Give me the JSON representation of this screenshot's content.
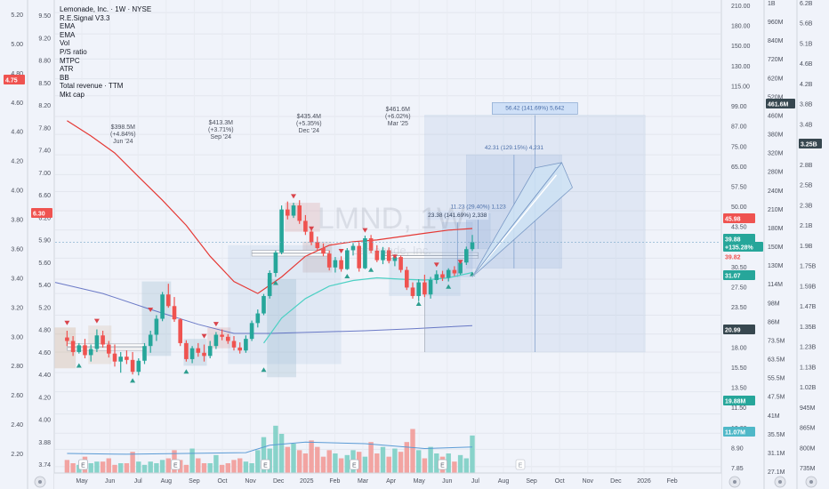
{
  "title": "Lemonade, Inc. · 1W · NYSE",
  "indicators": [
    "R.E.Signal V3.3",
    "EMA",
    "EMA",
    "Vol",
    "P/S ratio",
    "MTPC",
    "ATR",
    "BB",
    "Total revenue · TTM",
    "Mkt cap"
  ],
  "watermark": "LMND, 1W",
  "watermark_sub": "Lemonade, Inc.",
  "colors": {
    "up": "#26a69a",
    "down": "#ef5350",
    "ema_fast": "#e53935",
    "ema_slow": "#4dd0c4",
    "ema_long": "#3f51b5",
    "projection": "#6c8ebf"
  },
  "left_axis_1": {
    "ticks": [
      "5.20",
      "5.00",
      "4.80",
      "4.60",
      "4.40",
      "4.20",
      "4.00",
      "3.80",
      "3.60",
      "3.40",
      "3.20",
      "3.00",
      "2.80",
      "2.60",
      "2.40",
      "2.20"
    ],
    "badge": "4.75"
  },
  "left_axis_2": {
    "ticks": [
      "9.50",
      "9.20",
      "8.80",
      "8.50",
      "8.20",
      "7.80",
      "7.40",
      "7.00",
      "6.60",
      "6.20",
      "5.90",
      "5.60",
      "5.40",
      "5.20",
      "4.80",
      "4.60",
      "4.40",
      "4.20",
      "4.00",
      "3.88",
      "3.74"
    ],
    "badge": "6.30"
  },
  "right_axis_1": {
    "ticks": [
      "210.00",
      "180.00",
      "150.00",
      "130.00",
      "115.00",
      "99.00",
      "87.00",
      "75.00",
      "65.00",
      "57.50",
      "50.00",
      "43.50",
      "35.50",
      "30.50",
      "27.50",
      "23.50",
      "20.50",
      "18.00",
      "15.50",
      "13.50",
      "11.50",
      "10.00",
      "8.90",
      "7.85"
    ],
    "badges": [
      {
        "text": "45.98",
        "color": "#ef5350"
      },
      {
        "text": "39.88",
        "color": "#26a69a"
      },
      {
        "text": "+135.28%",
        "color": "#26a69a"
      },
      {
        "text": "39.82",
        "color": "#ef5350"
      },
      {
        "text": "31.07",
        "color": "#26a69a"
      },
      {
        "text": "20.99",
        "color": "#37474f"
      },
      {
        "text": "19.88M",
        "color": "#26a69a"
      },
      {
        "text": "11.07M",
        "color": "#4fb8c8"
      }
    ]
  },
  "right_axis_2": {
    "ticks": [
      "1B",
      "960M",
      "840M",
      "720M",
      "620M",
      "520M",
      "460M",
      "380M",
      "320M",
      "280M",
      "240M",
      "210M",
      "180M",
      "150M",
      "130M",
      "114M",
      "98M",
      "86M",
      "73.5M",
      "63.5M",
      "55.5M",
      "47.5M",
      "41M",
      "35.5M",
      "31.1M",
      "27.1M"
    ],
    "badge": "461.6M"
  },
  "right_axis_3": {
    "ticks": [
      "6.2B",
      "5.6B",
      "5.1B",
      "4.6B",
      "4.2B",
      "3.8B",
      "3.4B",
      "3.1B",
      "2.8B",
      "2.5B",
      "2.3B",
      "2.1B",
      "1.9B",
      "1.75B",
      "1.59B",
      "1.47B",
      "1.35B",
      "1.23B",
      "1.13B",
      "1.02B",
      "945M",
      "865M",
      "800M",
      "735M"
    ],
    "badge": "3.25B"
  },
  "x_axis": [
    "May",
    "Jun",
    "Jul",
    "Aug",
    "Sep",
    "Oct",
    "Nov",
    "Dec",
    "2025",
    "Feb",
    "Mar",
    "Apr",
    "May",
    "Jun",
    "Jul",
    "Aug",
    "Sep",
    "Oct",
    "Nov",
    "Dec",
    "2026",
    "Feb"
  ],
  "revenue_labels": [
    {
      "value": "$398.5M",
      "change": "(+4.84%)",
      "date": "Jun '24"
    },
    {
      "value": "$413.3M",
      "change": "(+3.71%)",
      "date": "Sep '24"
    },
    {
      "value": "$435.4M",
      "change": "(+5.35%)",
      "date": "Dec '24"
    },
    {
      "value": "$461.6M",
      "change": "(+6.02%)",
      "date": "Mar '25"
    }
  ],
  "measure_labels": [
    "56.42 (141.69%) 5,642",
    "42.31 (129.15%) 4,231",
    "11.23 (29.40%) 1,123",
    "23.38 (141.69%) 2,338"
  ],
  "earnings_marker": "E",
  "chart_data": {
    "type": "candlestick",
    "title": "Lemonade, Inc. · 1W · NYSE",
    "symbol": "LMND",
    "interval": "1W",
    "y_scale": "log",
    "ylim": [
      7.5,
      230
    ],
    "last_price": 39.88,
    "change_pct": "+135.28%",
    "x_ticks": [
      "May",
      "Jun",
      "Jul",
      "Aug",
      "Sep",
      "Oct",
      "Nov",
      "Dec",
      "2025",
      "Feb",
      "Mar",
      "Apr",
      "May",
      "Jun",
      "Jul",
      "Aug",
      "Sep",
      "Oct",
      "Nov",
      "Dec",
      "2026",
      "Feb"
    ],
    "candles": [
      [
        20.0,
        21.0,
        18.8,
        19.5
      ],
      [
        19.5,
        20.2,
        17.5,
        18.0
      ],
      [
        18.0,
        19.2,
        17.8,
        18.9
      ],
      [
        18.9,
        19.8,
        17.2,
        17.6
      ],
      [
        17.6,
        19.0,
        16.8,
        18.4
      ],
      [
        18.4,
        21.2,
        18.0,
        20.3
      ],
      [
        20.3,
        21.0,
        18.6,
        19.0
      ],
      [
        19.0,
        19.5,
        17.3,
        17.8
      ],
      [
        17.8,
        19.0,
        16.2,
        16.8
      ],
      [
        16.8,
        18.0,
        15.5,
        17.4
      ],
      [
        17.4,
        18.2,
        16.5,
        17.0
      ],
      [
        17.0,
        18.0,
        15.3,
        15.6
      ],
      [
        15.6,
        17.2,
        15.2,
        16.9
      ],
      [
        16.9,
        19.2,
        16.5,
        18.8
      ],
      [
        18.8,
        21.0,
        17.9,
        20.4
      ],
      [
        20.4,
        23.5,
        19.5,
        22.9
      ],
      [
        22.9,
        27.8,
        22.5,
        27.3
      ],
      [
        27.3,
        29.5,
        24.8,
        25.1
      ],
      [
        25.1,
        26.8,
        22.4,
        22.8
      ],
      [
        22.8,
        23.0,
        18.8,
        19.2
      ],
      [
        19.2,
        19.6,
        16.8,
        17.1
      ],
      [
        17.1,
        18.8,
        16.6,
        18.5
      ],
      [
        18.5,
        19.2,
        17.4,
        17.9
      ],
      [
        17.9,
        19.0,
        16.8,
        17.5
      ],
      [
        17.5,
        19.5,
        17.2,
        18.8
      ],
      [
        18.8,
        20.8,
        18.4,
        20.4
      ],
      [
        20.4,
        21.2,
        19.6,
        20.1
      ],
      [
        20.1,
        20.5,
        19.1,
        19.5
      ],
      [
        19.5,
        20.2,
        18.2,
        18.6
      ],
      [
        18.6,
        19.3,
        17.8,
        18.2
      ],
      [
        18.2,
        20.3,
        17.9,
        19.8
      ],
      [
        19.8,
        22.6,
        19.5,
        22.2
      ],
      [
        22.2,
        24.5,
        21.5,
        23.8
      ],
      [
        23.8,
        27.4,
        23.5,
        27.0
      ],
      [
        27.0,
        32.5,
        26.5,
        31.9
      ],
      [
        31.9,
        37.5,
        31.0,
        37.0
      ],
      [
        37.0,
        52.0,
        36.5,
        50.5
      ],
      [
        50.5,
        53.5,
        47.0,
        48.3
      ],
      [
        48.3,
        53.0,
        47.5,
        52.0
      ],
      [
        52.0,
        54.0,
        45.5,
        46.5
      ],
      [
        46.5,
        48.5,
        42.0,
        43.0
      ],
      [
        43.0,
        44.0,
        39.0,
        39.8
      ],
      [
        39.8,
        41.5,
        37.5,
        38.2
      ],
      [
        38.2,
        39.5,
        36.0,
        36.7
      ],
      [
        36.7,
        37.5,
        32.5,
        33.2
      ],
      [
        33.2,
        35.8,
        32.0,
        35.0
      ],
      [
        35.0,
        36.0,
        32.2,
        32.8
      ],
      [
        32.8,
        38.2,
        32.6,
        37.6
      ],
      [
        37.6,
        39.6,
        36.2,
        38.8
      ],
      [
        38.8,
        39.8,
        32.2,
        33.0
      ],
      [
        33.0,
        41.8,
        32.8,
        41.0
      ],
      [
        41.0,
        42.0,
        36.8,
        37.5
      ],
      [
        37.5,
        39.0,
        34.5,
        35.0
      ],
      [
        35.0,
        38.5,
        34.0,
        37.6
      ],
      [
        37.6,
        38.4,
        34.2,
        34.8
      ],
      [
        34.8,
        36.5,
        33.5,
        35.8
      ],
      [
        35.8,
        36.2,
        32.0,
        32.6
      ],
      [
        32.6,
        33.4,
        28.2,
        28.7
      ],
      [
        28.7,
        29.8,
        26.5,
        27.0
      ],
      [
        27.0,
        30.5,
        26.0,
        29.8
      ],
      [
        29.8,
        31.5,
        26.8,
        27.3
      ],
      [
        27.3,
        31.0,
        26.5,
        30.3
      ],
      [
        30.3,
        32.5,
        29.5,
        31.6
      ],
      [
        31.6,
        32.4,
        30.1,
        30.8
      ],
      [
        30.8,
        33.0,
        30.0,
        32.6
      ],
      [
        32.6,
        33.5,
        31.2,
        31.8
      ],
      [
        31.8,
        35.0,
        31.5,
        34.4
      ],
      [
        34.4,
        38.6,
        33.8,
        37.9
      ],
      [
        37.9,
        42.0,
        37.4,
        39.88
      ]
    ],
    "ema_fast": [
      [
        0,
        96.0
      ],
      [
        4,
        86.0
      ],
      [
        8,
        76.0
      ],
      [
        12,
        64.0
      ],
      [
        16,
        54.0
      ],
      [
        20,
        45.0
      ],
      [
        24,
        36.0
      ],
      [
        28,
        30.0
      ],
      [
        32,
        27.5
      ],
      [
        36,
        31.0
      ],
      [
        40,
        36.0
      ],
      [
        44,
        39.0
      ],
      [
        48,
        40.0
      ],
      [
        52,
        40.5
      ],
      [
        56,
        41.5
      ],
      [
        60,
        42.5
      ],
      [
        64,
        43.5
      ],
      [
        68,
        44.0
      ]
    ],
    "ema_slow": [
      [
        33,
        19.2
      ],
      [
        36,
        23.0
      ],
      [
        40,
        26.5
      ],
      [
        44,
        29.0
      ],
      [
        48,
        30.2
      ],
      [
        52,
        30.8
      ],
      [
        56,
        30.5
      ],
      [
        60,
        30.3
      ],
      [
        64,
        30.8
      ],
      [
        68,
        32.0
      ]
    ],
    "ema_long": [
      [
        -2,
        29.8
      ],
      [
        6,
        27.5
      ],
      [
        14,
        24.5
      ],
      [
        22,
        22.0
      ],
      [
        28,
        20.6
      ],
      [
        34,
        20.6
      ],
      [
        42,
        20.8
      ],
      [
        50,
        21.0
      ],
      [
        58,
        21.3
      ],
      [
        68,
        21.8
      ]
    ],
    "volume": {
      "ylim": [
        0,
        60
      ],
      "values": [
        8,
        6,
        5,
        10,
        6,
        7,
        7,
        9,
        5,
        6,
        6,
        13,
        7,
        5,
        7,
        6,
        8,
        9,
        14,
        8,
        5,
        15,
        9,
        6,
        6,
        11,
        5,
        6,
        8,
        9,
        7,
        6,
        14,
        22,
        15,
        29,
        24,
        16,
        18,
        14,
        12,
        20,
        16,
        10,
        14,
        12,
        9,
        11,
        14,
        13,
        10,
        19,
        12,
        16,
        10,
        15,
        13,
        19,
        27,
        14,
        9,
        16,
        12,
        10,
        12,
        7,
        11,
        9,
        23
      ],
      "ma": [
        [
          0,
          12
        ],
        [
          10,
          11.5
        ],
        [
          20,
          12.0
        ],
        [
          30,
          12.5
        ],
        [
          34,
          17
        ],
        [
          40,
          19
        ],
        [
          50,
          18
        ],
        [
          60,
          15
        ],
        [
          68,
          16
        ]
      ]
    },
    "projection": {
      "start": [
        68,
        31.0
      ],
      "end": [
        83,
        70.0
      ]
    },
    "measures": [
      {
        "label": "56.42 (141.69%) 5,642",
        "from": [
          60,
          18.0
        ],
        "to": [
          97,
          100.0
        ]
      },
      {
        "label": "42.31 (129.15%) 4,231",
        "from": [
          67,
          33.0
        ],
        "to": [
          83,
          75.0
        ]
      },
      {
        "label": "11.23 (29.40%) 1,123",
        "from": [
          67,
          38.0
        ],
        "to": [
          71,
          49.0
        ]
      },
      {
        "label": "23.38 (141.69%) 2,338",
        "from": [
          63,
          31.0
        ],
        "to": [
          68,
          46.0
        ]
      }
    ]
  }
}
